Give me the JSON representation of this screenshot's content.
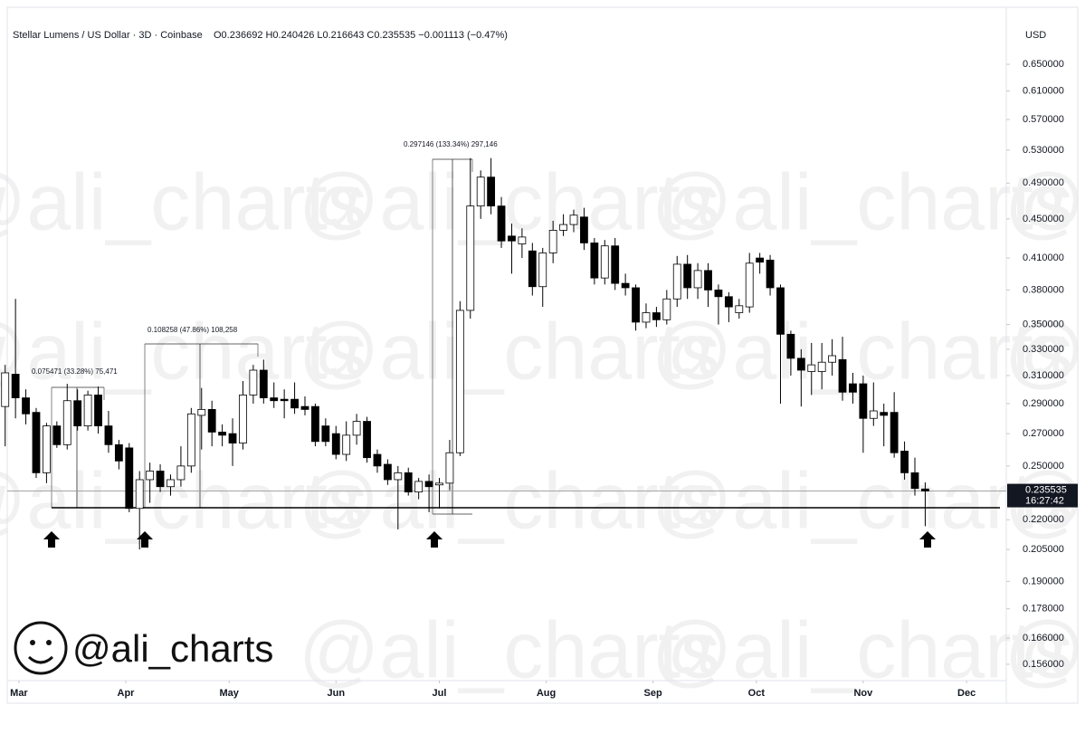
{
  "chart_data": {
    "type": "candlestick",
    "title": "Stellar Lumens / US Dollar · 3D · Coinbase",
    "ohlc_header": "O0.236692 H0.240426 L0.216643 C0.235535 −0.001113 (−0.47%)",
    "currency": "USD",
    "countdown": "16:27:42",
    "log_scale": true,
    "grid": false,
    "colors": {
      "up": "#ffffff",
      "down": "#000000",
      "outline": "#000000"
    },
    "x": [
      -4,
      -1,
      2,
      5,
      8,
      11,
      14,
      17,
      20,
      23,
      26,
      29,
      32,
      35,
      38,
      41,
      44,
      47,
      50,
      53,
      56,
      59,
      62,
      65,
      68,
      71,
      74,
      77,
      80,
      83,
      86,
      89,
      92,
      95,
      98,
      101,
      104,
      107,
      110,
      113,
      116,
      119,
      122,
      125,
      128,
      131,
      134,
      137,
      140,
      143,
      146,
      149,
      152,
      155,
      158,
      161,
      164,
      167,
      170,
      173,
      176,
      179,
      182,
      185,
      188,
      191,
      194,
      197,
      200,
      203,
      206,
      209,
      212,
      215,
      218,
      221,
      224,
      227,
      230,
      233,
      236,
      239,
      242,
      245,
      248,
      251,
      254,
      257,
      260,
      263
    ],
    "open": [
      0.288,
      0.311,
      0.294,
      0.284,
      0.246,
      0.275,
      0.263,
      0.292,
      0.275,
      0.296,
      0.275,
      0.263,
      0.261,
      0.226,
      0.242,
      0.247,
      0.238,
      0.242,
      0.25,
      0.282,
      0.286,
      0.271,
      0.27,
      0.264,
      0.296,
      0.314,
      0.294,
      0.293,
      0.293,
      0.288,
      0.288,
      0.275,
      0.27,
      0.257,
      0.269,
      0.278,
      0.257,
      0.251,
      0.242,
      0.246,
      0.235,
      0.241,
      0.239,
      0.24,
      0.258,
      0.362,
      0.464,
      0.497,
      0.464,
      0.432,
      0.424,
      0.417,
      0.383,
      0.415,
      0.438,
      0.444,
      0.452,
      0.425,
      0.391,
      0.422,
      0.386,
      0.382,
      0.352,
      0.36,
      0.354,
      0.372,
      0.404,
      0.382,
      0.398,
      0.38,
      0.374,
      0.36,
      0.365,
      0.41,
      0.408,
      0.382,
      0.342,
      0.323,
      0.313,
      0.313,
      0.32,
      0.322,
      0.304,
      0.304,
      0.28,
      0.284,
      0.284,
      0.259,
      0.246,
      0.236692
    ],
    "high": [
      0.318,
      0.372,
      0.3,
      0.287,
      0.277,
      0.278,
      0.304,
      0.3,
      0.299,
      0.302,
      0.285,
      0.266,
      0.264,
      0.247,
      0.252,
      0.251,
      0.245,
      0.262,
      0.287,
      0.301,
      0.292,
      0.276,
      0.28,
      0.306,
      0.318,
      0.322,
      0.305,
      0.3,
      0.305,
      0.295,
      0.29,
      0.28,
      0.275,
      0.278,
      0.283,
      0.281,
      0.26,
      0.254,
      0.25,
      0.249,
      0.243,
      0.245,
      0.243,
      0.266,
      0.37,
      0.52,
      0.505,
      0.52,
      0.474,
      0.445,
      0.44,
      0.425,
      0.42,
      0.448,
      0.455,
      0.46,
      0.462,
      0.43,
      0.428,
      0.43,
      0.395,
      0.385,
      0.368,
      0.365,
      0.38,
      0.412,
      0.413,
      0.405,
      0.405,
      0.385,
      0.378,
      0.372,
      0.415,
      0.415,
      0.413,
      0.385,
      0.345,
      0.33,
      0.335,
      0.335,
      0.338,
      0.34,
      0.312,
      0.31,
      0.305,
      0.29,
      0.298,
      0.265,
      0.255,
      0.240426
    ],
    "low": [
      0.262,
      0.28,
      0.276,
      0.243,
      0.24,
      0.261,
      0.26,
      0.272,
      0.272,
      0.27,
      0.258,
      0.248,
      0.224,
      0.205,
      0.229,
      0.235,
      0.233,
      0.238,
      0.246,
      0.26,
      0.262,
      0.262,
      0.25,
      0.26,
      0.29,
      0.29,
      0.287,
      0.28,
      0.283,
      0.282,
      0.262,
      0.262,
      0.254,
      0.253,
      0.263,
      0.252,
      0.246,
      0.239,
      0.215,
      0.233,
      0.231,
      0.224,
      0.226,
      0.236,
      0.256,
      0.355,
      0.45,
      0.455,
      0.42,
      0.395,
      0.41,
      0.375,
      0.365,
      0.405,
      0.432,
      0.436,
      0.418,
      0.385,
      0.385,
      0.38,
      0.375,
      0.345,
      0.347,
      0.348,
      0.35,
      0.365,
      0.372,
      0.372,
      0.365,
      0.35,
      0.352,
      0.355,
      0.36,
      0.395,
      0.375,
      0.29,
      0.31,
      0.288,
      0.296,
      0.3,
      0.31,
      0.292,
      0.29,
      0.258,
      0.275,
      0.262,
      0.255,
      0.242,
      0.233,
      0.216643
    ],
    "close": [
      0.312,
      0.294,
      0.283,
      0.246,
      0.275,
      0.263,
      0.292,
      0.275,
      0.296,
      0.275,
      0.263,
      0.253,
      0.226,
      0.242,
      0.247,
      0.238,
      0.242,
      0.25,
      0.283,
      0.286,
      0.271,
      0.269,
      0.264,
      0.296,
      0.314,
      0.294,
      0.292,
      0.292,
      0.287,
      0.286,
      0.265,
      0.265,
      0.257,
      0.269,
      0.278,
      0.255,
      0.25,
      0.242,
      0.246,
      0.235,
      0.241,
      0.238,
      0.24,
      0.258,
      0.362,
      0.464,
      0.497,
      0.464,
      0.427,
      0.427,
      0.431,
      0.383,
      0.415,
      0.438,
      0.444,
      0.454,
      0.425,
      0.391,
      0.422,
      0.386,
      0.382,
      0.352,
      0.36,
      0.354,
      0.372,
      0.404,
      0.382,
      0.398,
      0.38,
      0.374,
      0.365,
      0.366,
      0.405,
      0.406,
      0.382,
      0.342,
      0.323,
      0.314,
      0.318,
      0.32,
      0.325,
      0.298,
      0.298,
      0.28,
      0.285,
      0.282,
      0.258,
      0.246,
      0.237,
      0.235535
    ],
    "xlim": [
      -5.5,
      286
    ],
    "xticks": [
      {
        "value": 0,
        "label": "Mar"
      },
      {
        "value": 31,
        "label": "Apr"
      },
      {
        "value": 61,
        "label": "May"
      },
      {
        "value": 92,
        "label": "Jun"
      },
      {
        "value": 122,
        "label": "Jul"
      },
      {
        "value": 153,
        "label": "Aug"
      },
      {
        "value": 184,
        "label": "Sep"
      },
      {
        "value": 214,
        "label": "Oct"
      },
      {
        "value": 245,
        "label": "Nov"
      },
      {
        "value": 275,
        "label": "Dec"
      }
    ],
    "ylim": [
      0.1507,
      0.7255
    ],
    "yticks": [
      {
        "value": 0.65,
        "label": "0.650000"
      },
      {
        "value": 0.61,
        "label": "0.610000"
      },
      {
        "value": 0.57,
        "label": "0.570000"
      },
      {
        "value": 0.53,
        "label": "0.530000"
      },
      {
        "value": 0.49,
        "label": "0.490000"
      },
      {
        "value": 0.45,
        "label": "0.450000"
      },
      {
        "value": 0.41,
        "label": "0.410000"
      },
      {
        "value": 0.38,
        "label": "0.380000"
      },
      {
        "value": 0.35,
        "label": "0.350000"
      },
      {
        "value": 0.33,
        "label": "0.330000"
      },
      {
        "value": 0.31,
        "label": "0.310000"
      },
      {
        "value": 0.29,
        "label": "0.290000"
      },
      {
        "value": 0.27,
        "label": "0.270000"
      },
      {
        "value": 0.25,
        "label": "0.250000"
      },
      {
        "value": 0.22,
        "label": "0.220000"
      },
      {
        "value": 0.205,
        "label": "0.205000"
      },
      {
        "value": 0.19,
        "label": "0.190000"
      },
      {
        "value": 0.178,
        "label": "0.178000"
      },
      {
        "value": 0.166,
        "label": "0.166000"
      },
      {
        "value": 0.156,
        "label": "0.156000"
      }
    ],
    "annotations": [
      "0.075471 (33.28%) 75,471",
      "0.108258 (47.86%) 108,258",
      "0.297146 (133.34%) 297,146"
    ]
  },
  "branding": {
    "handle": "@ali_charts"
  }
}
